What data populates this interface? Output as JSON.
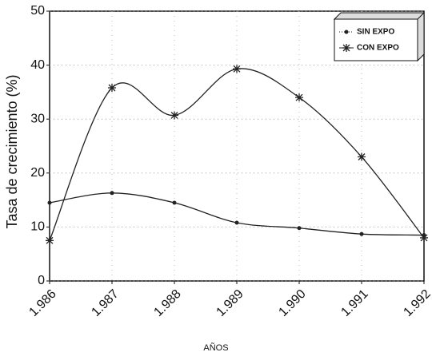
{
  "chart_data": {
    "type": "line",
    "x_label": "AÑOS",
    "y_label": "Tasa de crecimiento (%)",
    "categories": [
      "1.986",
      "1.987",
      "1.988",
      "1.989",
      "1.990",
      "1.991",
      "1.992"
    ],
    "series": [
      {
        "name": "SIN EXPO",
        "color": "#222222",
        "marker": "dot",
        "values": [
          14.5,
          16.3,
          14.5,
          10.8,
          9.8,
          8.7,
          8.5
        ]
      },
      {
        "name": "CON EXPO",
        "color": "#222222",
        "marker": "star",
        "values": [
          7.5,
          35.8,
          30.7,
          39.3,
          34,
          23,
          8
        ]
      }
    ],
    "ylim": [
      0,
      50
    ],
    "yticks": [
      0,
      10,
      20,
      30,
      40,
      50
    ],
    "grid": true,
    "legend": "upper right"
  }
}
